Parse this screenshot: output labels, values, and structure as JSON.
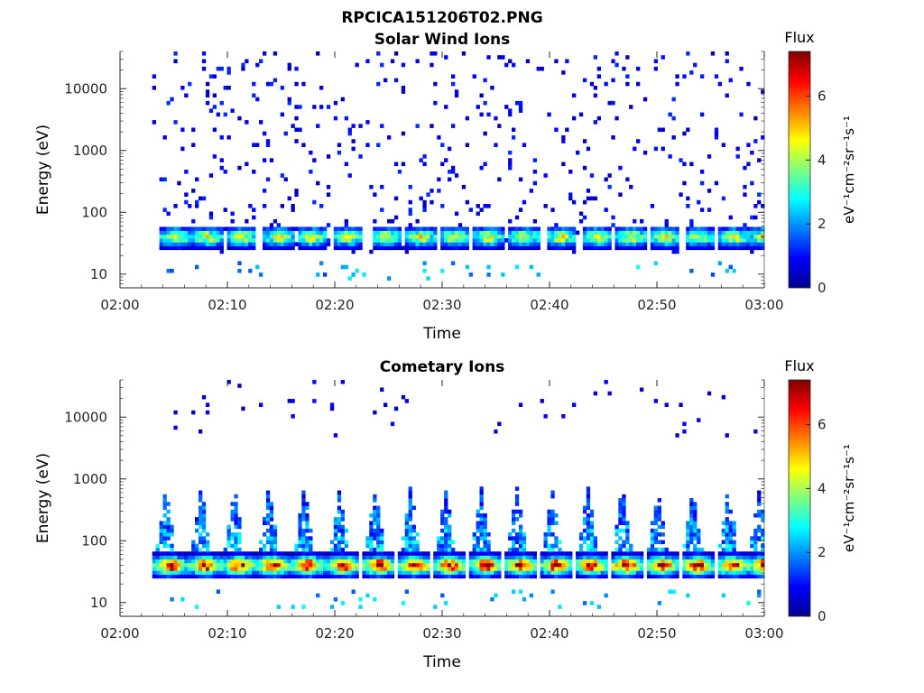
{
  "figure_title": "RPCICA151206T02.PNG",
  "colorbar": {
    "title": "Flux",
    "unit": "eV⁻¹cm⁻²sr⁻¹s⁻¹",
    "ticks": [
      "0",
      "2",
      "4",
      "6"
    ],
    "range": [
      0,
      7.4
    ],
    "colormap": "jet"
  },
  "chart_data": [
    {
      "type": "heatmap",
      "title": "Solar Wind Ions",
      "xlabel": "Time",
      "ylabel": "Energy (eV)",
      "x_ticks": [
        "02:00",
        "02:10",
        "02:20",
        "02:30",
        "02:40",
        "02:50",
        "03:00"
      ],
      "y_ticks": [
        "10",
        "100",
        "1000",
        "10000"
      ],
      "y_scale": "log",
      "xlim": [
        "02:00",
        "03:00"
      ],
      "ylim": [
        6,
        40000
      ],
      "data_start": "02:03",
      "pulse_times_min": [
        5.0,
        8.0,
        11.2,
        14.6,
        17.8,
        21.1,
        24.6,
        27.8,
        31.0,
        34.2,
        37.5,
        40.9,
        44.2,
        47.4,
        50.6,
        53.8,
        57.0,
        59.8
      ],
      "peak_energy_eV": 40,
      "peak_flux": 4.8,
      "background_flux": 0.4,
      "note_features": "band 20-80 eV peaks; sparse low-flux counts up to ~40000 eV"
    },
    {
      "type": "heatmap",
      "title": "Cometary Ions",
      "xlabel": "Time",
      "ylabel": "Energy (eV)",
      "x_ticks": [
        "02:00",
        "02:10",
        "02:20",
        "02:30",
        "02:40",
        "02:50",
        "03:00"
      ],
      "y_ticks": [
        "10",
        "100",
        "1000",
        "10000"
      ],
      "y_scale": "log",
      "xlim": [
        "02:00",
        "03:00"
      ],
      "ylim": [
        6,
        40000
      ],
      "data_start": "02:03",
      "pulse_times_min": [
        4.5,
        7.8,
        10.9,
        14.1,
        17.4,
        20.7,
        24.0,
        27.3,
        30.6,
        33.9,
        37.2,
        40.5,
        43.8,
        47.0,
        50.3,
        53.6,
        56.9,
        59.8
      ],
      "peak_energy_eV": 40,
      "peak_flux": 7.2,
      "background_flux": 0.4,
      "note_features": "intense band 25-60 eV with plumes extending to ~1000 eV"
    }
  ]
}
